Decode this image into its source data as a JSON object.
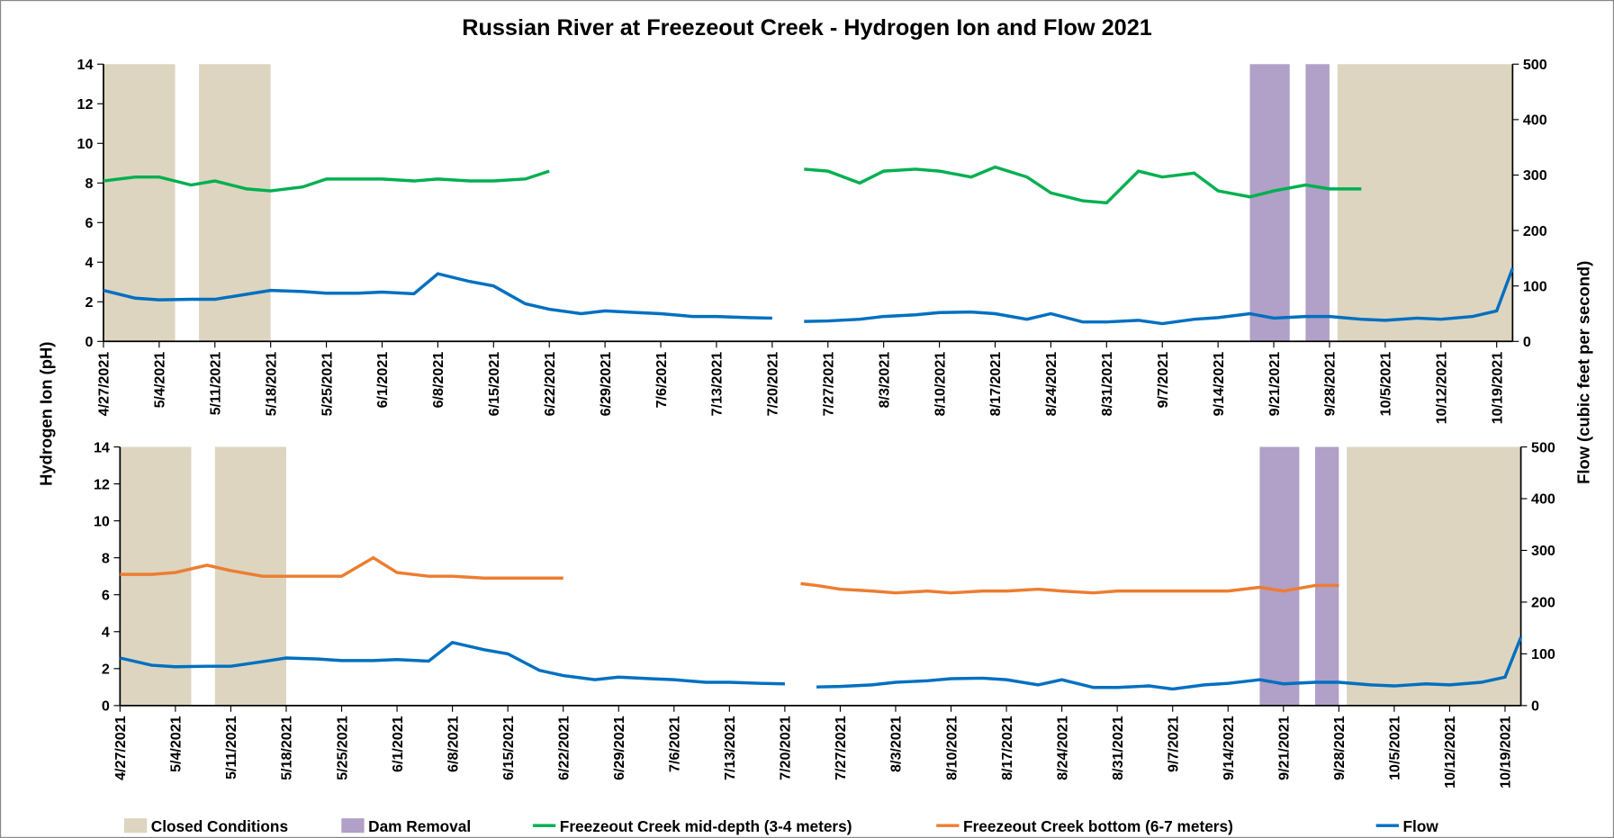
{
  "chart_data": [
    {
      "type": "line",
      "title": "Russian River at Freezeout Creek - Hydrogen Ion and Flow 2021",
      "y_label": "Hydrogen Ion (pH)",
      "y2_label": "Flow (cubic feet per second)",
      "x": [
        "4/27/2021",
        "5/1/2021",
        "5/4/2021",
        "5/8/2021",
        "5/11/2021",
        "5/15/2021",
        "5/18/2021",
        "5/22/2021",
        "5/25/2021",
        "5/29/2021",
        "6/1/2021",
        "6/5/2021",
        "6/8/2021",
        "6/12/2021",
        "6/15/2021",
        "6/19/2021",
        "6/22/2021",
        "6/26/2021",
        "6/29/2021",
        "7/3/2021",
        "7/6/2021",
        "7/10/2021",
        "7/13/2021",
        "7/17/2021",
        "7/20/2021",
        "7/22/2021",
        "7/24/2021",
        "7/27/2021",
        "7/31/2021",
        "8/3/2021",
        "8/7/2021",
        "8/10/2021",
        "8/14/2021",
        "8/17/2021",
        "8/21/2021",
        "8/24/2021",
        "8/28/2021",
        "8/31/2021",
        "9/4/2021",
        "9/7/2021",
        "9/11/2021",
        "9/14/2021",
        "9/18/2021",
        "9/21/2021",
        "9/25/2021",
        "9/28/2021",
        "10/2/2021",
        "10/5/2021",
        "10/9/2021",
        "10/12/2021",
        "10/16/2021",
        "10/19/2021",
        "10/21/2021"
      ],
      "xlim": [
        "4/27/2021",
        "10/21/2021"
      ],
      "xticks": [
        "4/27/2021",
        "5/4/2021",
        "5/11/2021",
        "5/18/2021",
        "5/25/2021",
        "6/1/2021",
        "6/8/2021",
        "6/15/2021",
        "6/22/2021",
        "6/29/2021",
        "7/6/2021",
        "7/13/2021",
        "7/20/2021",
        "7/27/2021",
        "8/3/2021",
        "8/10/2021",
        "8/17/2021",
        "8/24/2021",
        "8/31/2021",
        "9/7/2021",
        "9/14/2021",
        "9/21/2021",
        "9/28/2021",
        "10/5/2021",
        "10/12/2021",
        "10/19/2021"
      ],
      "ylim": [
        0,
        14
      ],
      "yticks": [
        0,
        2,
        4,
        6,
        8,
        10,
        12,
        14
      ],
      "y2lim": [
        0,
        500
      ],
      "y2ticks": [
        0,
        100,
        200,
        300,
        400,
        500
      ],
      "bands": [
        {
          "name": "Closed Conditions",
          "color": "#ddd5c0",
          "ranges": [
            [
              "4/27/2021",
              "5/6/2021"
            ],
            [
              "5/9/2021",
              "5/18/2021"
            ],
            [
              "9/29/2021",
              "10/21/2021"
            ]
          ]
        },
        {
          "name": "Dam Removal",
          "color": "#b1a0c7",
          "ranges": [
            [
              "9/18/2021",
              "9/23/2021"
            ],
            [
              "9/25/2021",
              "9/28/2021"
            ]
          ]
        }
      ],
      "series": [
        {
          "name": "Freezeout Creek mid-depth (3-4 meters)",
          "color": "#00b050",
          "values": [
            8.1,
            8.3,
            8.3,
            7.9,
            8.1,
            7.7,
            7.6,
            7.8,
            8.2,
            8.2,
            8.2,
            8.1,
            8.2,
            8.1,
            8.1,
            8.2,
            8.6,
            null,
            null,
            null,
            null,
            null,
            null,
            null,
            null,
            null,
            8.7,
            8.6,
            8.0,
            8.6,
            8.7,
            8.6,
            8.3,
            8.8,
            8.3,
            7.5,
            7.1,
            7.0,
            8.6,
            8.3,
            8.5,
            7.6,
            7.3,
            7.6,
            7.9,
            7.7,
            7.7,
            null,
            null,
            null,
            null,
            null,
            null
          ]
        },
        {
          "name": "Flow",
          "color": "#0070c0",
          "axis": "y2",
          "values": [
            92,
            78,
            75,
            76,
            76,
            85,
            92,
            90,
            87,
            87,
            89,
            86,
            122,
            108,
            100,
            68,
            58,
            50,
            55,
            52,
            50,
            45,
            45,
            43,
            42,
            null,
            36,
            37,
            40,
            45,
            48,
            52,
            53,
            50,
            40,
            50,
            35,
            35,
            38,
            32,
            40,
            43,
            50,
            42,
            45,
            45,
            40,
            38,
            42,
            40,
            45,
            55,
            132
          ]
        }
      ]
    },
    {
      "type": "line",
      "x": [
        "4/27/2021",
        "5/1/2021",
        "5/4/2021",
        "5/8/2021",
        "5/11/2021",
        "5/15/2021",
        "5/18/2021",
        "5/22/2021",
        "5/25/2021",
        "5/29/2021",
        "6/1/2021",
        "6/5/2021",
        "6/8/2021",
        "6/12/2021",
        "6/15/2021",
        "6/19/2021",
        "6/22/2021",
        "6/26/2021",
        "6/29/2021",
        "7/3/2021",
        "7/6/2021",
        "7/10/2021",
        "7/13/2021",
        "7/17/2021",
        "7/20/2021",
        "7/22/2021",
        "7/24/2021",
        "7/27/2021",
        "7/31/2021",
        "8/3/2021",
        "8/7/2021",
        "8/10/2021",
        "8/14/2021",
        "8/17/2021",
        "8/21/2021",
        "8/24/2021",
        "8/28/2021",
        "8/31/2021",
        "9/4/2021",
        "9/7/2021",
        "9/11/2021",
        "9/14/2021",
        "9/18/2021",
        "9/21/2021",
        "9/25/2021",
        "9/28/2021",
        "10/2/2021",
        "10/5/2021",
        "10/9/2021",
        "10/12/2021",
        "10/16/2021",
        "10/19/2021",
        "10/21/2021"
      ],
      "xlim": [
        "4/27/2021",
        "10/21/2021"
      ],
      "xticks": [
        "4/27/2021",
        "5/4/2021",
        "5/11/2021",
        "5/18/2021",
        "5/25/2021",
        "6/1/2021",
        "6/8/2021",
        "6/15/2021",
        "6/22/2021",
        "6/29/2021",
        "7/6/2021",
        "7/13/2021",
        "7/20/2021",
        "7/27/2021",
        "8/3/2021",
        "8/10/2021",
        "8/17/2021",
        "8/24/2021",
        "8/31/2021",
        "9/7/2021",
        "9/14/2021",
        "9/21/2021",
        "9/28/2021",
        "10/5/2021",
        "10/12/2021",
        "10/19/2021"
      ],
      "ylim": [
        0,
        14
      ],
      "yticks": [
        0,
        2,
        4,
        6,
        8,
        10,
        12,
        14
      ],
      "y2lim": [
        0,
        500
      ],
      "y2ticks": [
        0,
        100,
        200,
        300,
        400,
        500
      ],
      "bands": [
        {
          "color": "#ddd5c0",
          "ranges": [
            [
              "4/27/2021",
              "5/6/2021"
            ],
            [
              "5/9/2021",
              "5/18/2021"
            ],
            [
              "9/29/2021",
              "10/21/2021"
            ]
          ]
        },
        {
          "color": "#b1a0c7",
          "ranges": [
            [
              "9/18/2021",
              "9/23/2021"
            ],
            [
              "9/25/2021",
              "9/28/2021"
            ]
          ]
        }
      ],
      "series": [
        {
          "name": "Freezeout Creek bottom (6-7 meters)",
          "color": "#ed7d31",
          "values": [
            7.1,
            7.1,
            7.2,
            7.6,
            7.3,
            7.0,
            7.0,
            7.0,
            7.0,
            8.0,
            7.2,
            7.0,
            7.0,
            6.9,
            6.9,
            6.9,
            6.9,
            null,
            null,
            null,
            null,
            null,
            null,
            null,
            null,
            6.6,
            6.5,
            6.3,
            6.2,
            6.1,
            6.2,
            6.1,
            6.2,
            6.2,
            6.3,
            6.2,
            6.1,
            6.2,
            6.2,
            6.2,
            6.2,
            6.2,
            6.4,
            6.2,
            6.5,
            6.5,
            null,
            null,
            null,
            null,
            null,
            null,
            null
          ]
        },
        {
          "color": "#0070c0",
          "axis": "y2",
          "values": [
            92,
            78,
            75,
            76,
            76,
            85,
            92,
            90,
            87,
            87,
            89,
            86,
            122,
            108,
            100,
            68,
            58,
            50,
            55,
            52,
            50,
            45,
            45,
            43,
            42,
            null,
            36,
            37,
            40,
            45,
            48,
            52,
            53,
            50,
            40,
            50,
            35,
            35,
            38,
            32,
            40,
            43,
            50,
            42,
            45,
            45,
            40,
            38,
            42,
            40,
            45,
            55,
            132
          ]
        }
      ]
    }
  ]
}
